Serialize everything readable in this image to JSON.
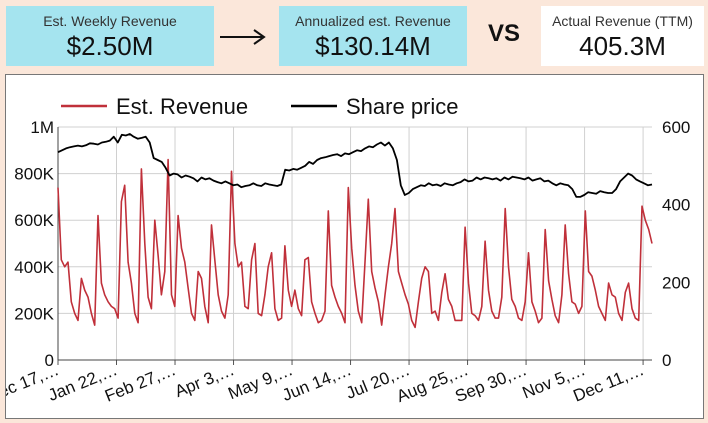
{
  "kpis": {
    "weekly": {
      "label": "Est. Weekly Revenue",
      "value": "$2.50M"
    },
    "annualized": {
      "label": "Annualized est. Revenue",
      "value": "$130.14M"
    },
    "vs": "VS",
    "actual": {
      "label": "Actual Revenue (TTM)",
      "value": "405.3M"
    }
  },
  "colors": {
    "revenue": "#c0303a",
    "share": "#000000",
    "accent": "#a5e4ef",
    "background": "#fbe7da"
  },
  "chart_data": {
    "type": "line",
    "legend": [
      "Est. Revenue",
      "Share price"
    ],
    "legend_position": "top",
    "x_tick_labels": [
      "Dec 17,…",
      "Jan 22,…",
      "Feb 27,…",
      "Apr 3,…",
      "May 9,…",
      "Jun 14,…",
      "Jul 20,…",
      "Aug 25,…",
      "Sep 30,…",
      "Nov 5,…",
      "Dec 11,…"
    ],
    "y_left": {
      "ticks": [
        "0",
        "200K",
        "400K",
        "600K",
        "800K",
        "1M"
      ],
      "range": [
        0,
        1000000
      ]
    },
    "y_right": {
      "ticks": [
        "0",
        "200",
        "400",
        "600"
      ],
      "range": [
        0,
        600
      ]
    },
    "grid": true,
    "series": [
      {
        "name": "Est. Revenue",
        "axis": "left",
        "values": [
          740000,
          430000,
          400000,
          420000,
          250000,
          200000,
          170000,
          350000,
          300000,
          270000,
          200000,
          150000,
          620000,
          330000,
          280000,
          250000,
          230000,
          220000,
          180000,
          680000,
          750000,
          420000,
          330000,
          200000,
          160000,
          820000,
          500000,
          270000,
          220000,
          600000,
          450000,
          280000,
          380000,
          860000,
          280000,
          230000,
          620000,
          480000,
          420000,
          310000,
          200000,
          170000,
          380000,
          350000,
          230000,
          160000,
          580000,
          430000,
          280000,
          210000,
          180000,
          280000,
          810000,
          500000,
          400000,
          420000,
          230000,
          220000,
          430000,
          500000,
          200000,
          190000,
          280000,
          400000,
          460000,
          220000,
          170000,
          180000,
          490000,
          300000,
          230000,
          300000,
          220000,
          190000,
          430000,
          440000,
          250000,
          200000,
          160000,
          170000,
          210000,
          640000,
          320000,
          270000,
          230000,
          200000,
          160000,
          740000,
          480000,
          320000,
          210000,
          160000,
          420000,
          690000,
          380000,
          310000,
          250000,
          150000,
          280000,
          400000,
          500000,
          650000,
          380000,
          330000,
          280000,
          240000,
          170000,
          140000,
          250000,
          350000,
          400000,
          380000,
          200000,
          210000,
          170000,
          290000,
          370000,
          260000,
          230000,
          170000,
          170000,
          170000,
          570000,
          330000,
          200000,
          190000,
          170000,
          230000,
          510000,
          300000,
          210000,
          180000,
          180000,
          270000,
          650000,
          400000,
          260000,
          230000,
          180000,
          170000,
          250000,
          460000,
          250000,
          210000,
          160000,
          180000,
          560000,
          340000,
          260000,
          190000,
          160000,
          280000,
          580000,
          370000,
          250000,
          240000,
          200000,
          230000,
          640000,
          380000,
          360000,
          300000,
          230000,
          200000,
          170000,
          330000,
          280000,
          270000,
          200000,
          170000,
          290000,
          330000,
          220000,
          180000,
          170000,
          660000,
          600000,
          560000,
          500000
        ]
      },
      {
        "name": "Share price",
        "axis": "right",
        "values": [
          535,
          540,
          545,
          548,
          550,
          552,
          550,
          553,
          558,
          557,
          555,
          560,
          562,
          565,
          575,
          560,
          580,
          578,
          582,
          575,
          570,
          572,
          575,
          560,
          520,
          515,
          510,
          495,
          475,
          480,
          478,
          470,
          475,
          472,
          468,
          460,
          470,
          465,
          468,
          462,
          458,
          455,
          460,
          455,
          450,
          452,
          445,
          448,
          450,
          455,
          450,
          448,
          455,
          452,
          450,
          448,
          452,
          490,
          488,
          492,
          490,
          495,
          500,
          510,
          505,
          515,
          520,
          522,
          525,
          528,
          530,
          525,
          532,
          530,
          535,
          540,
          538,
          545,
          550,
          548,
          555,
          560,
          552,
          560,
          545,
          515,
          450,
          425,
          430,
          440,
          445,
          450,
          448,
          455,
          450,
          452,
          448,
          455,
          452,
          450,
          455,
          458,
          465,
          460,
          462,
          470,
          465,
          470,
          468,
          465,
          468,
          462,
          470,
          465,
          472,
          470,
          468,
          465,
          470,
          462,
          465,
          468,
          460,
          462,
          455,
          450,
          455,
          452,
          450,
          440,
          420,
          420,
          425,
          432,
          430,
          428,
          435,
          432,
          430,
          430,
          440,
          460,
          470,
          480,
          475,
          465,
          460,
          455,
          450,
          452
        ]
      }
    ]
  }
}
